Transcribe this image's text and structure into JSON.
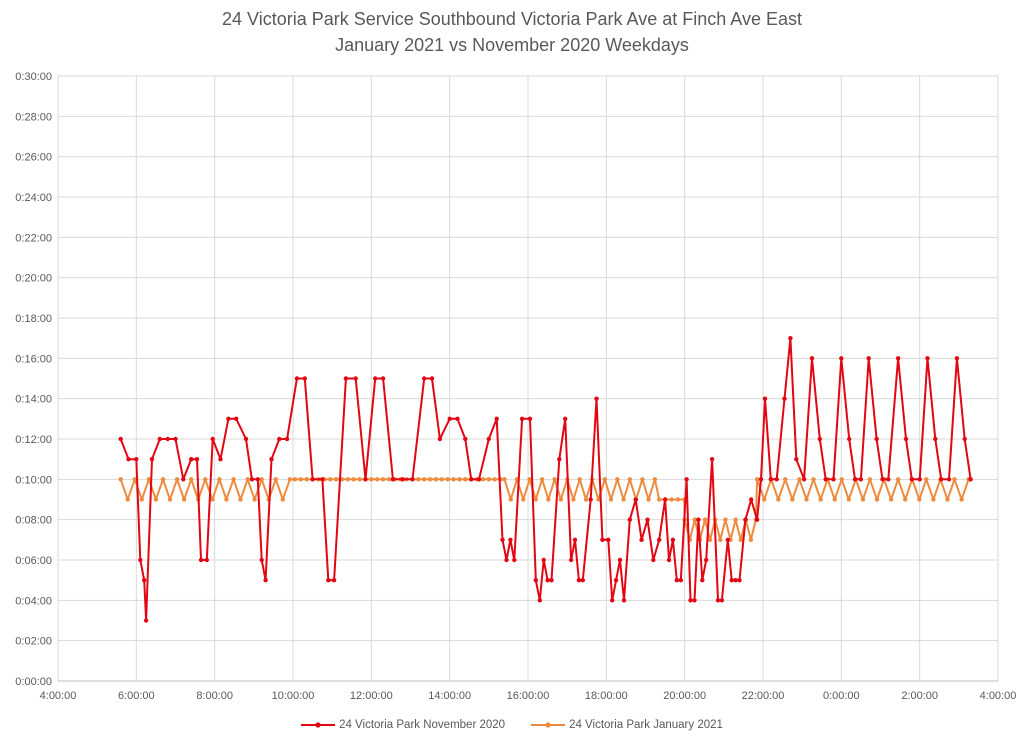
{
  "chart_data": {
    "type": "line",
    "title": "24 Victoria Park Service Southbound Victoria Park Ave at Finch Ave East",
    "subtitle": "January 2021 vs November 2020 Weekdays",
    "xlabel": "",
    "ylabel": "",
    "x_axis": {
      "unit": "hours",
      "range": [
        4,
        28
      ],
      "ticks": [
        4,
        6,
        8,
        10,
        12,
        14,
        16,
        18,
        20,
        22,
        24,
        26,
        28
      ],
      "tick_labels": [
        "4:00:00",
        "6:00:00",
        "8:00:00",
        "10:00:00",
        "12:00:00",
        "14:00:00",
        "16:00:00",
        "18:00:00",
        "20:00:00",
        "22:00:00",
        "0:00:00",
        "2:00:00",
        "4:00:00"
      ]
    },
    "y_axis": {
      "unit": "minutes",
      "range": [
        0,
        30
      ],
      "ticks": [
        0,
        2,
        4,
        6,
        8,
        10,
        12,
        14,
        16,
        18,
        20,
        22,
        24,
        26,
        28,
        30
      ],
      "tick_labels": [
        "0:00:00",
        "0:02:00",
        "0:04:00",
        "0:06:00",
        "0:08:00",
        "0:10:00",
        "0:12:00",
        "0:14:00",
        "0:16:00",
        "0:18:00",
        "0:20:00",
        "0:22:00",
        "0:24:00",
        "0:26:00",
        "0:28:00",
        "0:30:00"
      ]
    },
    "grid": true,
    "legend_position": "bottom",
    "series": [
      {
        "name": "24 Victoria Park November 2020",
        "color": "#e30613",
        "marker": "dot",
        "points": [
          [
            5.6,
            12
          ],
          [
            5.8,
            11
          ],
          [
            6.0,
            11
          ],
          [
            6.1,
            6
          ],
          [
            6.2,
            5
          ],
          [
            6.25,
            3
          ],
          [
            6.4,
            11
          ],
          [
            6.6,
            12
          ],
          [
            6.8,
            12
          ],
          [
            7.0,
            12
          ],
          [
            7.2,
            10
          ],
          [
            7.4,
            11
          ],
          [
            7.55,
            11
          ],
          [
            7.65,
            6
          ],
          [
            7.8,
            6
          ],
          [
            7.95,
            12
          ],
          [
            8.15,
            11
          ],
          [
            8.35,
            13
          ],
          [
            8.55,
            13
          ],
          [
            8.8,
            12
          ],
          [
            8.95,
            10
          ],
          [
            9.1,
            10
          ],
          [
            9.2,
            6
          ],
          [
            9.3,
            5
          ],
          [
            9.45,
            11
          ],
          [
            9.65,
            12
          ],
          [
            9.85,
            12
          ],
          [
            10.1,
            15
          ],
          [
            10.3,
            15
          ],
          [
            10.5,
            10
          ],
          [
            10.75,
            10
          ],
          [
            10.9,
            5
          ],
          [
            11.05,
            5
          ],
          [
            11.35,
            15
          ],
          [
            11.6,
            15
          ],
          [
            11.85,
            10
          ],
          [
            12.1,
            15
          ],
          [
            12.3,
            15
          ],
          [
            12.55,
            10
          ],
          [
            12.8,
            10
          ],
          [
            13.05,
            10
          ],
          [
            13.35,
            15
          ],
          [
            13.55,
            15
          ],
          [
            13.75,
            12
          ],
          [
            14.0,
            13
          ],
          [
            14.2,
            13
          ],
          [
            14.4,
            12
          ],
          [
            14.55,
            10
          ],
          [
            14.75,
            10
          ],
          [
            15.0,
            12
          ],
          [
            15.2,
            13
          ],
          [
            15.35,
            7
          ],
          [
            15.45,
            6
          ],
          [
            15.55,
            7
          ],
          [
            15.65,
            6
          ],
          [
            15.85,
            13
          ],
          [
            16.05,
            13
          ],
          [
            16.2,
            5
          ],
          [
            16.3,
            4
          ],
          [
            16.4,
            6
          ],
          [
            16.5,
            5
          ],
          [
            16.6,
            5
          ],
          [
            16.8,
            11
          ],
          [
            16.95,
            13
          ],
          [
            17.1,
            6
          ],
          [
            17.2,
            7
          ],
          [
            17.3,
            5
          ],
          [
            17.4,
            5
          ],
          [
            17.6,
            9
          ],
          [
            17.75,
            14
          ],
          [
            17.9,
            7
          ],
          [
            18.05,
            7
          ],
          [
            18.15,
            4
          ],
          [
            18.25,
            5
          ],
          [
            18.35,
            6
          ],
          [
            18.45,
            4
          ],
          [
            18.6,
            8
          ],
          [
            18.75,
            9
          ],
          [
            18.9,
            7
          ],
          [
            19.05,
            8
          ],
          [
            19.2,
            6
          ],
          [
            19.35,
            7
          ],
          [
            19.5,
            9
          ],
          [
            19.6,
            6
          ],
          [
            19.7,
            7
          ],
          [
            19.8,
            5
          ],
          [
            19.9,
            5
          ],
          [
            20.05,
            10
          ],
          [
            20.15,
            4
          ],
          [
            20.25,
            4
          ],
          [
            20.35,
            8
          ],
          [
            20.45,
            5
          ],
          [
            20.55,
            6
          ],
          [
            20.7,
            11
          ],
          [
            20.85,
            4
          ],
          [
            20.95,
            4
          ],
          [
            21.1,
            7
          ],
          [
            21.2,
            5
          ],
          [
            21.3,
            5
          ],
          [
            21.4,
            5
          ],
          [
            21.55,
            8
          ],
          [
            21.7,
            9
          ],
          [
            21.85,
            8
          ],
          [
            21.95,
            10
          ],
          [
            22.05,
            14
          ],
          [
            22.2,
            10
          ],
          [
            22.35,
            10
          ],
          [
            22.55,
            14
          ],
          [
            22.7,
            17
          ],
          [
            22.85,
            11
          ],
          [
            23.05,
            10
          ],
          [
            23.25,
            16
          ],
          [
            23.45,
            12
          ],
          [
            23.6,
            10
          ],
          [
            23.8,
            10
          ],
          [
            24.0,
            16
          ],
          [
            24.2,
            12
          ],
          [
            24.35,
            10
          ],
          [
            24.5,
            10
          ],
          [
            24.7,
            16
          ],
          [
            24.9,
            12
          ],
          [
            25.05,
            10
          ],
          [
            25.2,
            10
          ],
          [
            25.45,
            16
          ],
          [
            25.65,
            12
          ],
          [
            25.8,
            10
          ],
          [
            26.0,
            10
          ],
          [
            26.2,
            16
          ],
          [
            26.4,
            12
          ],
          [
            26.55,
            10
          ],
          [
            26.75,
            10
          ],
          [
            26.95,
            16
          ],
          [
            27.15,
            12
          ],
          [
            27.3,
            10
          ]
        ]
      },
      {
        "name": "24 Victoria Park January 2021",
        "color": "#ed8b3f",
        "marker": "dot",
        "segments": [
          {
            "start": 5.6,
            "end": 10.05,
            "pattern": [
              10,
              9
            ],
            "step": 0.18
          },
          {
            "start": 10.05,
            "end": 15.4,
            "pattern": [
              10
            ],
            "step": 0.15
          },
          {
            "start": 15.4,
            "end": 19.35,
            "pattern": [
              10,
              9
            ],
            "step": 0.16
          },
          {
            "start": 19.35,
            "end": 20.0,
            "pattern": [
              9
            ],
            "step": 0.16
          },
          {
            "start": 20.0,
            "end": 21.85,
            "pattern": [
              8,
              7
            ],
            "step": 0.13
          },
          {
            "start": 21.85,
            "end": 27.3,
            "pattern": [
              10,
              9
            ],
            "step": 0.18
          }
        ]
      }
    ]
  }
}
